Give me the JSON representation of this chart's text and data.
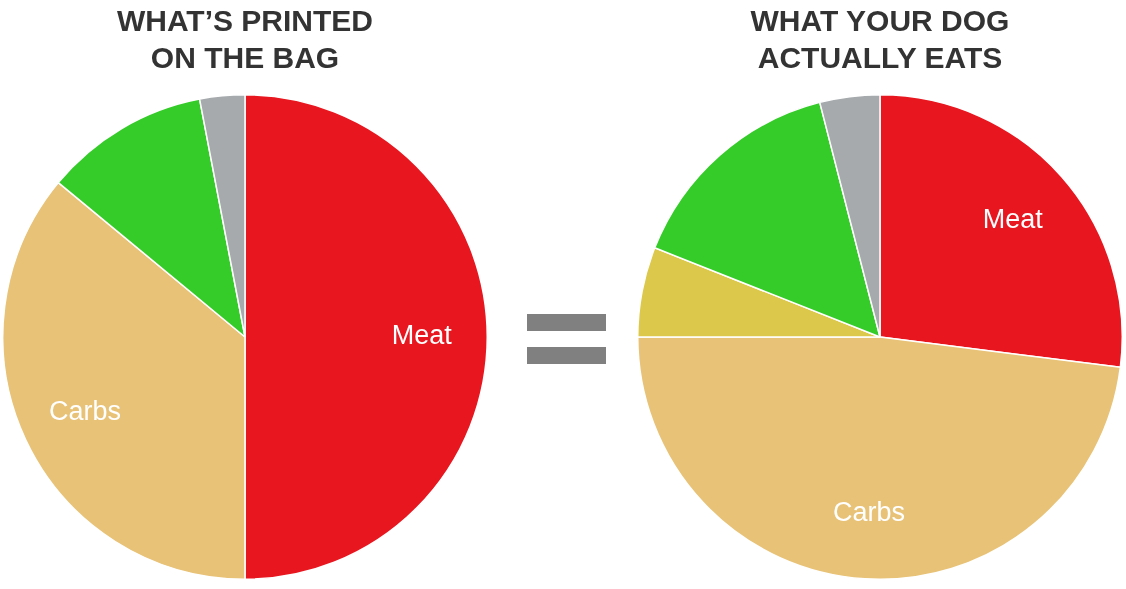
{
  "chart_data": [
    {
      "type": "pie",
      "title": "WHAT’S PRINTED ON THE BAG",
      "categories": [
        "Meat",
        "Carbs",
        null,
        null
      ],
      "values": [
        50,
        36,
        11,
        3
      ],
      "colors": [
        "#e8161f",
        "#e8c276",
        "#35cc2a",
        "#a7aaad"
      ]
    },
    {
      "type": "pie",
      "title": "WHAT YOUR DOG ACTUALLY EATS",
      "categories": [
        "Meat",
        "Carbs",
        null,
        null,
        null
      ],
      "values": [
        27,
        48,
        6,
        15,
        4
      ],
      "colors": [
        "#e8161f",
        "#e8c276",
        "#dcc84a",
        "#35cc2a",
        "#a7aaad"
      ]
    }
  ]
}
